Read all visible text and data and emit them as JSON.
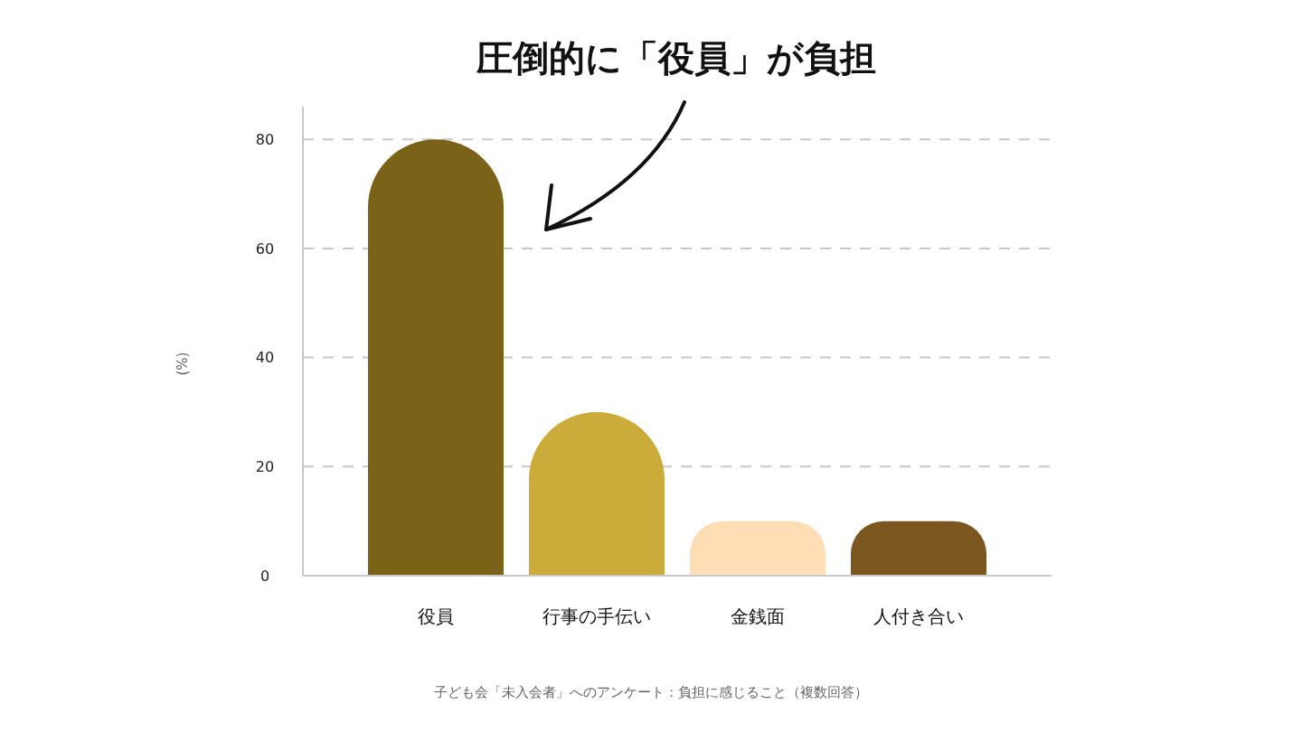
{
  "chart_data": {
    "type": "bar",
    "title": "圧倒的に「役員」が負担",
    "ylabel": "(%)",
    "categories": [
      "役員",
      "行事の手伝い",
      "金銭面",
      "人付き合い"
    ],
    "values": [
      80,
      30,
      10,
      10
    ],
    "colors": [
      "#7a6218",
      "#cbab3a",
      "#ffdeb6",
      "#7b561e"
    ],
    "ylim": [
      0,
      86
    ],
    "yticks": [
      0,
      20,
      40,
      60,
      80
    ],
    "grid": "y",
    "annotations": [
      "子ども会「未入会者」へのアンケート：負担に感じること（複数回答）"
    ]
  }
}
